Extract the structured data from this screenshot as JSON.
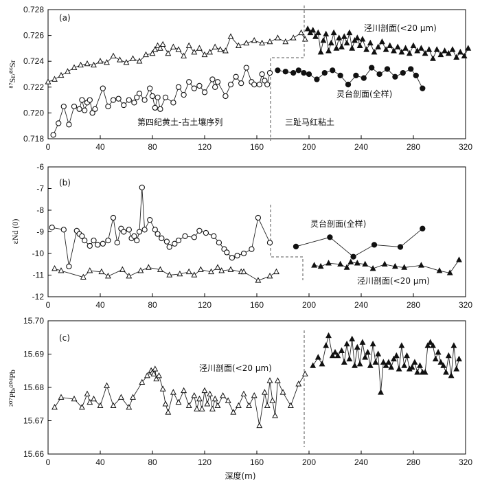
{
  "chart_data": [
    {
      "type": "line",
      "panel_label": "(a)",
      "ylabel": "⁸⁷Sr/⁸⁶Sr",
      "xlim": [
        0,
        320
      ],
      "ylim": [
        0.718,
        0.728
      ],
      "xticks": [
        0,
        40,
        80,
        120,
        160,
        200,
        240,
        280,
        320
      ],
      "yticks": [
        0.718,
        0.72,
        0.722,
        0.724,
        0.726,
        0.728
      ],
      "ytick_labels": [
        "0.718",
        "0.720",
        "0.722",
        "0.724",
        "0.726",
        "0.728"
      ],
      "annotations": [
        "泾川剖面(<20 μm)",
        "灵台剖面(全样)",
        "第四纪黄土-古土壤序列",
        "三趾马红粘土"
      ],
      "series": [
        {
          "name": "泾川剖面(<20 μm)",
          "marker": "triangle-open",
          "x": [
            0,
            5,
            10,
            15,
            20,
            25,
            30,
            35,
            40,
            45,
            50,
            55,
            60,
            65,
            70,
            75,
            80,
            82,
            84,
            86,
            88,
            92,
            96,
            100,
            104,
            108,
            112,
            116,
            120,
            124,
            128,
            132,
            136,
            140,
            146,
            152,
            158,
            164,
            170,
            176,
            182,
            188,
            194,
            197
          ],
          "y": [
            0.7224,
            0.7226,
            0.7229,
            0.7232,
            0.7235,
            0.7237,
            0.7238,
            0.7237,
            0.724,
            0.7239,
            0.7244,
            0.7241,
            0.7239,
            0.7242,
            0.724,
            0.7245,
            0.7246,
            0.7249,
            0.7252,
            0.725,
            0.7253,
            0.7246,
            0.7251,
            0.7249,
            0.7244,
            0.7252,
            0.7247,
            0.725,
            0.7245,
            0.7247,
            0.7251,
            0.7249,
            0.7248,
            0.7259,
            0.7252,
            0.7254,
            0.7256,
            0.7254,
            0.7255,
            0.7258,
            0.7255,
            0.7258,
            0.7262,
            0.7257
          ]
        },
        {
          "name": "泾川剖面(<20 μm)",
          "marker": "triangle-filled",
          "x": [
            199,
            201,
            203,
            205,
            207,
            209,
            211,
            213,
            215,
            217,
            219,
            221,
            223,
            225,
            227,
            229,
            231,
            233,
            235,
            237,
            239,
            241,
            244,
            247,
            250,
            253,
            256,
            259,
            262,
            265,
            268,
            271,
            274,
            277,
            280,
            283,
            286,
            289,
            292,
            295,
            298,
            301,
            304,
            307,
            310,
            313,
            316,
            319,
            322
          ],
          "y": [
            0.7265,
            0.7262,
            0.7264,
            0.7259,
            0.7262,
            0.7247,
            0.7256,
            0.7261,
            0.7248,
            0.7254,
            0.7262,
            0.725,
            0.7258,
            0.7251,
            0.7259,
            0.7254,
            0.7262,
            0.725,
            0.7256,
            0.7258,
            0.7252,
            0.7257,
            0.7249,
            0.7254,
            0.7247,
            0.7251,
            0.7255,
            0.7249,
            0.7252,
            0.7248,
            0.7251,
            0.7247,
            0.725,
            0.7246,
            0.7252,
            0.7248,
            0.725,
            0.7246,
            0.7249,
            0.7242,
            0.7249,
            0.7245,
            0.7248,
            0.7246,
            0.7249,
            0.7243,
            0.7247,
            0.7244,
            0.725
          ]
        },
        {
          "name": "灵台剖面(全样)",
          "marker": "circle-open",
          "x": [
            4,
            8,
            12,
            16,
            20,
            24,
            26,
            28,
            30,
            32,
            34,
            36,
            42,
            46,
            50,
            54,
            58,
            62,
            66,
            68,
            70,
            74,
            78,
            80,
            82,
            84,
            86,
            90,
            96,
            100,
            104,
            108,
            112,
            116,
            120,
            126,
            128,
            130,
            136,
            140,
            144,
            148,
            152,
            156,
            158,
            162,
            164,
            166,
            168,
            170
          ],
          "y": [
            0.7183,
            0.7192,
            0.7205,
            0.7191,
            0.7205,
            0.7203,
            0.721,
            0.7202,
            0.7208,
            0.721,
            0.72,
            0.7203,
            0.7219,
            0.7205,
            0.721,
            0.7211,
            0.7206,
            0.721,
            0.7208,
            0.7212,
            0.7215,
            0.721,
            0.7219,
            0.7213,
            0.7204,
            0.7212,
            0.7203,
            0.7212,
            0.7208,
            0.722,
            0.7214,
            0.7224,
            0.7219,
            0.7221,
            0.7216,
            0.7226,
            0.722,
            0.7224,
            0.7213,
            0.7222,
            0.7228,
            0.7223,
            0.7235,
            0.7224,
            0.7222,
            0.7222,
            0.723,
            0.7225,
            0.7222,
            0.7231
          ]
        },
        {
          "name": "灵台剖面(全样)",
          "marker": "circle-filled",
          "x": [
            176,
            182,
            188,
            192,
            196,
            200,
            206,
            212,
            218,
            224,
            230,
            236,
            242,
            248,
            254,
            260,
            266,
            272,
            278,
            282,
            287
          ],
          "y": [
            0.7233,
            0.7232,
            0.7231,
            0.7233,
            0.7231,
            0.723,
            0.7226,
            0.7231,
            0.7233,
            0.7229,
            0.7222,
            0.7229,
            0.7227,
            0.7235,
            0.723,
            0.7234,
            0.7228,
            0.7231,
            0.7234,
            0.7229,
            0.7219
          ]
        }
      ]
    },
    {
      "type": "line",
      "panel_label": "(b)",
      "ylabel": "εNd (0)",
      "xlim": [
        0,
        320
      ],
      "ylim": [
        -12,
        -6
      ],
      "xticks": [
        0,
        40,
        80,
        120,
        160,
        200,
        240,
        280,
        320
      ],
      "yticks": [
        -12,
        -11,
        -10,
        -9,
        -8,
        -7,
        -6
      ],
      "ytick_labels": [
        "-12",
        "-11",
        "-10",
        "-9",
        "-8",
        "-7",
        "-6"
      ],
      "annotations": [
        "灵台剖面(全样)",
        "泾川剖面(<20 μm)"
      ],
      "series": [
        {
          "name": "灵台剖面(全样)",
          "marker": "circle-open",
          "x": [
            3,
            12,
            16,
            22,
            24,
            26,
            28,
            32,
            35,
            38,
            42,
            46,
            50,
            53,
            56,
            58,
            62,
            64,
            66,
            68,
            70,
            72,
            74,
            78,
            82,
            84,
            87,
            91,
            93,
            97,
            100,
            105,
            112,
            116,
            121,
            127,
            131,
            135,
            137,
            141,
            145,
            150,
            156,
            161,
            170
          ],
          "y": [
            -8.8,
            -8.9,
            -10.6,
            -8.95,
            -9.1,
            -9.2,
            -9.4,
            -9.65,
            -9.4,
            -9.6,
            -9.55,
            -9.4,
            -8.35,
            -9.5,
            -8.85,
            -9.0,
            -8.9,
            -9.3,
            -9.2,
            -9.4,
            -9.0,
            -6.95,
            -8.9,
            -8.45,
            -8.9,
            -9.1,
            -9.3,
            -9.45,
            -9.7,
            -9.55,
            -9.4,
            -9.2,
            -9.25,
            -8.95,
            -9.05,
            -9.2,
            -9.5,
            -9.8,
            -9.95,
            -10.2,
            -10.1,
            -10.0,
            -9.8,
            -8.35,
            -9.5
          ]
        },
        {
          "name": "灵台剖面(全样)",
          "marker": "circle-filled",
          "x": [
            190,
            216,
            234,
            250,
            270,
            287
          ],
          "y": [
            -9.68,
            -9.25,
            -10.15,
            -9.6,
            -9.7,
            -8.85
          ]
        },
        {
          "name": "泾川剖面(<20 μm)",
          "marker": "triangle-open",
          "x": [
            5,
            10,
            27,
            32,
            41,
            46,
            57,
            62,
            71,
            77,
            86,
            93,
            101,
            108,
            112,
            117,
            125,
            130,
            133,
            140,
            148,
            150,
            161,
            170,
            175
          ],
          "y": [
            -10.7,
            -10.8,
            -11.1,
            -10.8,
            -10.85,
            -11.05,
            -10.75,
            -11.05,
            -10.8,
            -10.65,
            -10.75,
            -11.0,
            -10.95,
            -10.85,
            -11.0,
            -10.75,
            -10.85,
            -10.65,
            -10.8,
            -10.75,
            -10.85,
            -10.85,
            -11.25,
            -11.05,
            -10.85
          ]
        },
        {
          "name": "泾川剖面(<20 μm)",
          "marker": "triangle-filled",
          "x": [
            204,
            209,
            215,
            224,
            229,
            232,
            237,
            243,
            249,
            258,
            266,
            273,
            286,
            300,
            308,
            315
          ],
          "y": [
            -10.55,
            -10.6,
            -10.45,
            -10.5,
            -10.65,
            -10.4,
            -10.45,
            -10.5,
            -10.7,
            -10.5,
            -10.6,
            -10.65,
            -10.55,
            -10.8,
            -10.9,
            -10.3
          ]
        }
      ]
    },
    {
      "type": "line",
      "panel_label": "(c)",
      "ylabel": "²⁰⁷Pb/²⁰⁴Pb",
      "xlabel": "深度(m)",
      "xlim": [
        0,
        320
      ],
      "ylim": [
        15.66,
        15.7
      ],
      "xticks": [
        0,
        40,
        80,
        120,
        160,
        200,
        240,
        280,
        320
      ],
      "yticks": [
        15.66,
        15.67,
        15.68,
        15.69,
        15.7
      ],
      "ytick_labels": [
        "15.66",
        "15.67",
        "15.68",
        "15.69",
        "15.70"
      ],
      "annotations": [
        "泾川剖面(<20 μm)"
      ],
      "series": [
        {
          "name": "泾川剖面(<20 μm)",
          "marker": "triangle-open",
          "x": [
            5,
            10,
            20,
            26,
            30,
            32,
            35,
            40,
            45,
            50,
            56,
            62,
            65,
            72,
            76,
            79,
            80,
            81,
            82,
            83,
            85,
            88,
            90,
            92,
            96,
            100,
            104,
            108,
            112,
            114,
            116,
            118,
            120,
            122,
            124,
            126,
            128,
            130,
            134,
            138,
            142,
            146,
            150,
            154,
            158,
            162,
            166,
            168,
            170,
            172,
            174,
            176,
            180,
            186,
            192,
            197
          ],
          "y": [
            15.674,
            15.677,
            15.6765,
            15.674,
            15.678,
            15.6755,
            15.6765,
            15.6745,
            15.6805,
            15.6745,
            15.677,
            15.674,
            15.677,
            15.6815,
            15.6835,
            15.685,
            15.6845,
            15.684,
            15.6855,
            15.6825,
            15.6835,
            15.6795,
            15.675,
            15.6725,
            15.6785,
            15.6755,
            15.679,
            15.6745,
            15.6775,
            15.6735,
            15.6765,
            15.6735,
            15.679,
            15.675,
            15.678,
            15.6735,
            15.6765,
            15.6745,
            15.6775,
            15.676,
            15.6725,
            15.6745,
            15.678,
            15.6745,
            15.6775,
            15.6685,
            15.6785,
            15.6745,
            15.682,
            15.676,
            15.6715,
            15.682,
            15.6785,
            15.6745,
            15.681,
            15.684
          ]
        },
        {
          "name": "泾川剖面(<20 μm)",
          "marker": "triangle-filled",
          "x": [
            203,
            207,
            210,
            213,
            215,
            218,
            220,
            222,
            225,
            227,
            229,
            231,
            233,
            235,
            237,
            239,
            241,
            243,
            245,
            247,
            249,
            251,
            253,
            255,
            257,
            259,
            261,
            263,
            265,
            267,
            269,
            271,
            273,
            275,
            277,
            279,
            281,
            283,
            285,
            287,
            289,
            291,
            293,
            295,
            297,
            299,
            301,
            303,
            305,
            307,
            309,
            311,
            313,
            315
          ],
          "y": [
            15.6865,
            15.689,
            15.687,
            15.6925,
            15.6955,
            15.6895,
            15.6905,
            15.6895,
            15.691,
            15.6875,
            15.693,
            15.6885,
            15.6945,
            15.6865,
            15.692,
            15.687,
            15.6935,
            15.689,
            15.6905,
            15.6865,
            15.693,
            15.6875,
            15.69,
            15.6785,
            15.6875,
            15.6865,
            15.6875,
            15.686,
            15.6885,
            15.6895,
            15.6855,
            15.6925,
            15.6865,
            15.6895,
            15.6855,
            15.686,
            15.6875,
            15.6845,
            15.6865,
            15.6845,
            15.6845,
            15.6925,
            15.6935,
            15.6925,
            15.6885,
            15.6905,
            15.6875,
            15.6865,
            15.6845,
            15.6895,
            15.6835,
            15.6925,
            15.6855,
            15.6885
          ]
        }
      ]
    }
  ]
}
